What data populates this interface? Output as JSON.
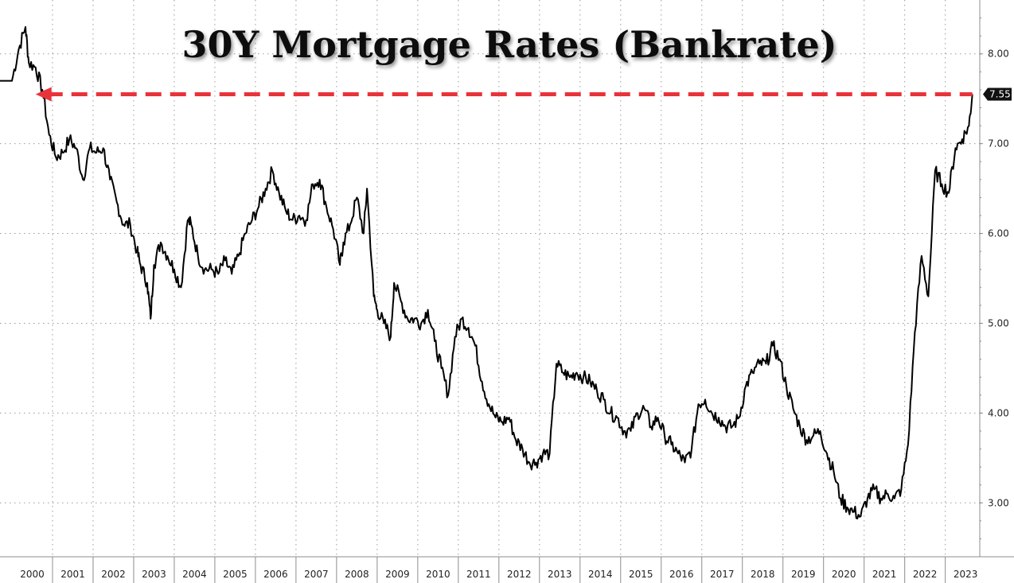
{
  "chart_data": {
    "type": "line",
    "title": "30Y Mortgage Rates (Bankrate)",
    "xlabel": "",
    "ylabel": "",
    "x_range": [
      "2000-01",
      "2023-10"
    ],
    "ylim": [
      2.4,
      8.6
    ],
    "y_ticks": [
      "3.00",
      "4.00",
      "5.00",
      "6.00",
      "7.00",
      "8.00"
    ],
    "y_tick_values": [
      3,
      4,
      5,
      6,
      7,
      8
    ],
    "x_ticks": [
      "2000",
      "2001",
      "2002",
      "2003",
      "2004",
      "2005",
      "2006",
      "2007",
      "2008",
      "2009",
      "2010",
      "2011",
      "2012",
      "2013",
      "2014",
      "2015",
      "2016",
      "2017",
      "2018",
      "2019",
      "2020",
      "2021",
      "2022",
      "2023"
    ],
    "grid": true,
    "y_axis_position": "right",
    "last_value_label": "7.55",
    "reference_line": {
      "value": 7.55,
      "from": "2000-08",
      "to": "2023-09",
      "style": "dashed-arrow",
      "color": "#e8333a"
    },
    "series": [
      {
        "x": [
          "2000-01",
          "2000-03",
          "2000-05",
          "2000-06",
          "2000-08",
          "2000-10",
          "2000-12",
          "2001-02",
          "2001-04",
          "2001-06",
          "2001-08",
          "2001-10",
          "2001-12",
          "2002-02",
          "2002-04",
          "2002-06",
          "2002-08",
          "2002-10",
          "2002-12",
          "2003-02",
          "2003-03",
          "2003-05",
          "2003-06",
          "2003-07",
          "2003-09",
          "2003-11",
          "2004-01",
          "2004-03",
          "2004-05",
          "2004-06",
          "2004-08",
          "2004-10",
          "2004-12",
          "2005-02",
          "2005-04",
          "2005-06",
          "2005-08",
          "2005-10",
          "2005-12",
          "2006-02",
          "2006-04",
          "2006-06",
          "2006-08",
          "2006-10",
          "2006-12",
          "2007-02",
          "2007-04",
          "2007-06",
          "2007-08",
          "2007-10",
          "2007-12",
          "2008-02",
          "2008-03",
          "2008-05",
          "2008-07",
          "2008-09",
          "2008-10",
          "2008-12",
          "2009-01",
          "2009-03",
          "2009-05",
          "2009-06",
          "2009-08",
          "2009-10",
          "2009-12",
          "2010-02",
          "2010-04",
          "2010-06",
          "2010-08",
          "2010-10",
          "2010-12",
          "2011-02",
          "2011-04",
          "2011-06",
          "2011-08",
          "2011-10",
          "2011-12",
          "2012-02",
          "2012-04",
          "2012-06",
          "2012-08",
          "2012-10",
          "2012-12",
          "2013-02",
          "2013-04",
          "2013-06",
          "2013-08",
          "2013-10",
          "2013-12",
          "2014-02",
          "2014-04",
          "2014-06",
          "2014-08",
          "2014-10",
          "2014-12",
          "2015-02",
          "2015-04",
          "2015-06",
          "2015-08",
          "2015-10",
          "2015-12",
          "2016-02",
          "2016-04",
          "2016-06",
          "2016-08",
          "2016-10",
          "2016-12",
          "2017-02",
          "2017-04",
          "2017-06",
          "2017-08",
          "2017-10",
          "2017-12",
          "2018-02",
          "2018-04",
          "2018-06",
          "2018-08",
          "2018-10",
          "2018-12",
          "2019-02",
          "2019-04",
          "2019-06",
          "2019-08",
          "2019-10",
          "2019-12",
          "2020-02",
          "2020-04",
          "2020-06",
          "2020-08",
          "2020-10",
          "2020-12",
          "2021-02",
          "2021-04",
          "2021-06",
          "2021-08",
          "2021-10",
          "2021-12",
          "2022-02",
          "2022-04",
          "2022-06",
          "2022-08",
          "2022-10",
          "2022-12",
          "2023-02",
          "2023-04",
          "2023-06",
          "2023-08",
          "2023-09"
        ],
        "values": [
          7.7,
          8.05,
          8.3,
          7.9,
          7.85,
          7.6,
          7.1,
          6.85,
          6.9,
          7.05,
          6.95,
          6.6,
          6.95,
          6.9,
          6.95,
          6.6,
          6.35,
          6.1,
          6.1,
          5.8,
          5.65,
          5.45,
          5.05,
          5.65,
          5.9,
          5.75,
          5.6,
          5.4,
          6.15,
          6.1,
          5.75,
          5.6,
          5.6,
          5.55,
          5.7,
          5.55,
          5.75,
          6.0,
          6.15,
          6.3,
          6.5,
          6.7,
          6.45,
          6.25,
          6.15,
          6.2,
          6.15,
          6.55,
          6.6,
          6.3,
          6.05,
          5.65,
          5.9,
          6.1,
          6.4,
          6.0,
          6.5,
          5.3,
          5.15,
          5.0,
          4.85,
          5.45,
          5.25,
          5.05,
          5.05,
          5.0,
          5.15,
          4.8,
          4.5,
          4.2,
          4.85,
          5.05,
          4.95,
          4.75,
          4.35,
          4.1,
          3.95,
          3.9,
          3.95,
          3.7,
          3.6,
          3.45,
          3.45,
          3.55,
          3.55,
          4.55,
          4.45,
          4.4,
          4.45,
          4.4,
          4.35,
          4.25,
          4.15,
          4.0,
          3.95,
          3.8,
          3.8,
          4.0,
          4.05,
          3.85,
          3.95,
          3.75,
          3.65,
          3.55,
          3.45,
          3.6,
          4.1,
          4.15,
          4.0,
          3.95,
          3.85,
          3.85,
          3.95,
          4.3,
          4.45,
          4.55,
          4.55,
          4.75,
          4.6,
          4.3,
          4.05,
          3.85,
          3.7,
          3.75,
          3.8,
          3.55,
          3.35,
          3.05,
          2.95,
          2.9,
          2.85,
          3.05,
          3.15,
          3.05,
          3.1,
          3.05,
          3.15,
          3.65,
          4.9,
          5.75,
          5.3,
          6.7,
          6.55,
          6.45,
          6.95,
          7.05,
          7.2,
          7.55
        ]
      }
    ]
  }
}
